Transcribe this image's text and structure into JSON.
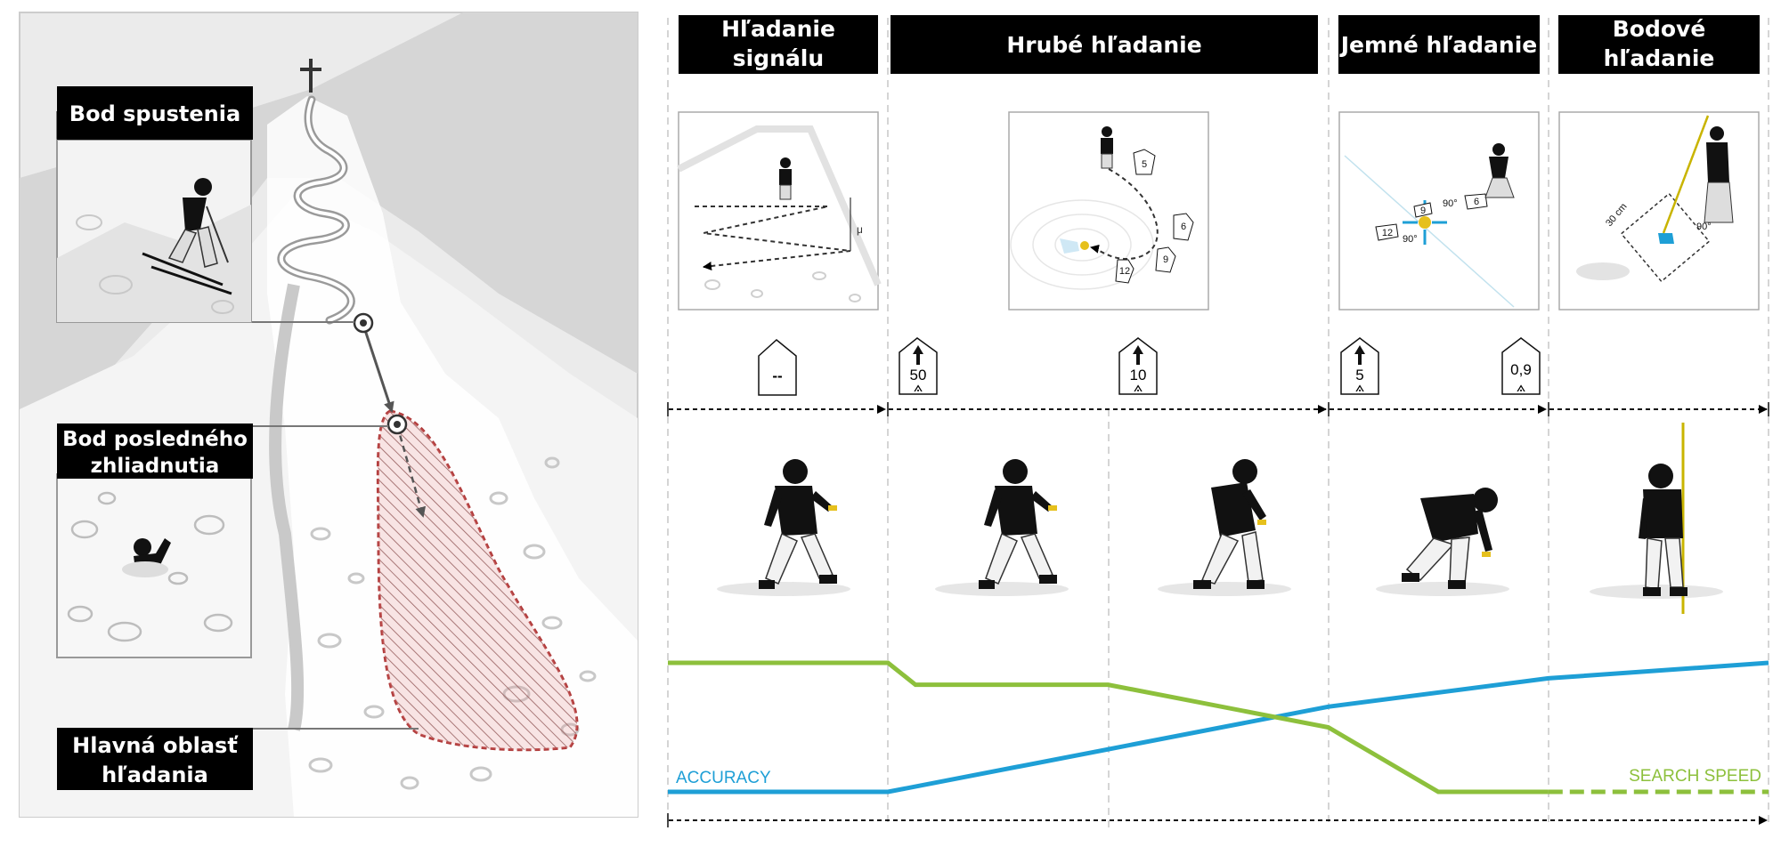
{
  "left_panel": {
    "labels": {
      "launch_point": "Bod spustenia",
      "last_seen": [
        "Bod posledného",
        "zhliadnutia"
      ],
      "main_area": [
        "Hlavná oblasť",
        "hľadania"
      ]
    }
  },
  "phases": [
    {
      "lines": [
        "Hľadanie",
        "signálu"
      ]
    },
    {
      "lines": [
        "Hrubé hľadanie"
      ]
    },
    {
      "lines": [
        "Jemné hľadanie"
      ]
    },
    {
      "lines": [
        "Bodové",
        "hľadanie"
      ]
    }
  ],
  "distance_signs": [
    {
      "value": "--"
    },
    {
      "value": "50"
    },
    {
      "value": "10"
    },
    {
      "value": "5"
    },
    {
      "value": "0,9"
    }
  ],
  "sketch_labels": {
    "signal_width": "μ",
    "coarse_values": [
      "5",
      "6",
      "9",
      "12"
    ],
    "fine_values": [
      "90°",
      "90°",
      "12",
      "9",
      "6"
    ],
    "pinpoint_size": "30 cm",
    "pinpoint_angle": "90°"
  },
  "chart_data": {
    "type": "line",
    "series": [
      {
        "name": "ACCURACY",
        "color": "#1e9fd6",
        "points": [
          [
            0,
            0.0
          ],
          [
            0.2,
            0.0
          ],
          [
            0.4,
            0.33
          ],
          [
            0.6,
            0.66
          ],
          [
            0.8,
            0.88
          ],
          [
            1.0,
            1.0
          ]
        ]
      },
      {
        "name": "SEARCH SPEED",
        "color": "#8dc03c",
        "points": [
          [
            0,
            1.0
          ],
          [
            0.2,
            1.0
          ],
          [
            0.225,
            0.83
          ],
          [
            0.4,
            0.83
          ],
          [
            0.6,
            0.5
          ],
          [
            0.7,
            0.0
          ],
          [
            0.8,
            0.0
          ],
          [
            1.0,
            0.0
          ]
        ],
        "dashed_from": 0.8
      }
    ]
  },
  "colors": {
    "label_bg": "#000000",
    "accuracy": "#1e9fd6",
    "search_speed": "#8dc03c",
    "search_area": "#b03a3a"
  }
}
